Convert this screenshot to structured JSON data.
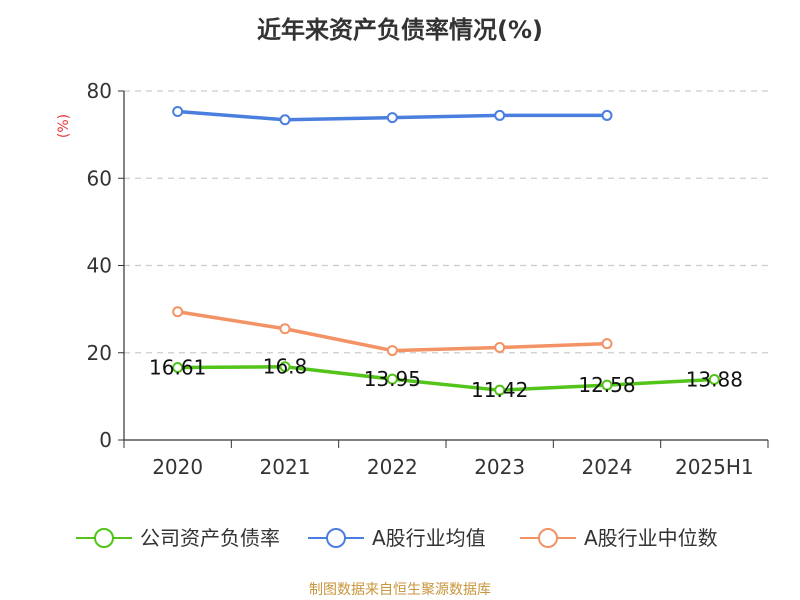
{
  "chart_data": {
    "type": "line",
    "title": "近年来资产负债率情况(%)",
    "ylabel": "(%)",
    "xlabel": "",
    "categories": [
      "2020",
      "2021",
      "2022",
      "2023",
      "2024",
      "2025H1"
    ],
    "ylim": [
      0,
      80
    ],
    "yticks": [
      0,
      20,
      40,
      60,
      80
    ],
    "grid": true,
    "legend_position": "bottom",
    "series": [
      {
        "name": "公司资产负债率",
        "color": "#52c41a",
        "values": [
          16.61,
          16.8,
          13.95,
          11.42,
          12.58,
          13.88
        ],
        "labels": [
          "16.61",
          "16.8",
          "13.95",
          "11.42",
          "12.58",
          "13.88"
        ]
      },
      {
        "name": "A股行业均值",
        "color": "#4a7fe0",
        "values": [
          75.3,
          73.4,
          73.9,
          74.4,
          74.4,
          null
        ]
      },
      {
        "name": "A股行业中位数",
        "color": "#f39264",
        "values": [
          29.4,
          25.5,
          20.5,
          21.2,
          22.1,
          null
        ]
      }
    ],
    "source": "制图数据来自恒生聚源数据库"
  }
}
